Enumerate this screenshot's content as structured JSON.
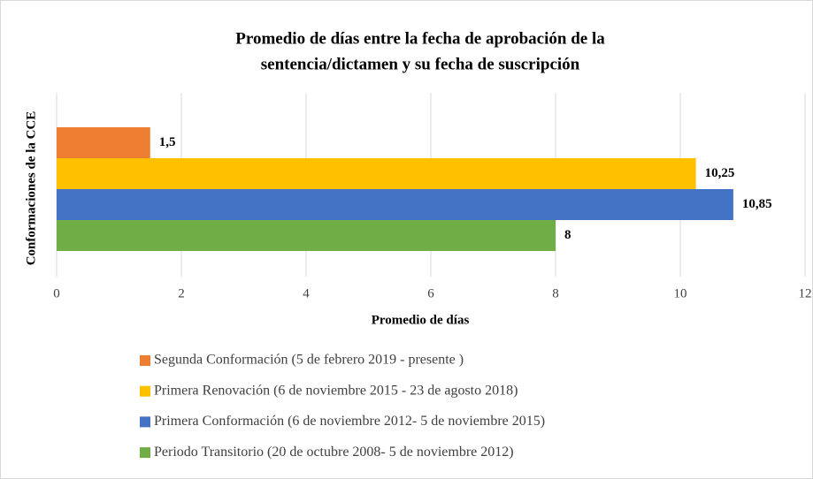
{
  "chart_data": {
    "type": "bar",
    "orientation": "horizontal",
    "title": [
      "Promedio de días entre la fecha de aprobación de la",
      "sentencia/dictamen y su fecha de suscripción"
    ],
    "x_label": "Promedio de días",
    "y_label": "Conformaciones de la CCE",
    "categories": [
      null
    ],
    "series": [
      {
        "name": "Segunda Conformación (5 de febrero 2019 - presente )",
        "color": "#ed7d31",
        "values": [
          1.5
        ],
        "value_labels": [
          "1,5"
        ]
      },
      {
        "name": "Primera Renovación (6 de noviembre 2015 - 23 de agosto 2018)",
        "color": "#ffc000",
        "values": [
          10.25
        ],
        "value_labels": [
          "10,25"
        ]
      },
      {
        "name": "Primera Conformación (6 de noviembre 2012- 5 de noviembre 2015)",
        "color": "#4472c4",
        "values": [
          10.85
        ],
        "value_labels": [
          "10,85"
        ]
      },
      {
        "name": "Periodo Transitorio (20 de octubre 2008- 5 de noviembre 2012)",
        "color": "#70ad47",
        "values": [
          8
        ],
        "value_labels": [
          "8"
        ]
      }
    ],
    "xlim": [
      0,
      12
    ],
    "xticks": [
      0,
      2,
      4,
      6,
      8,
      10,
      12
    ],
    "grid": true,
    "legend": "bottom"
  }
}
